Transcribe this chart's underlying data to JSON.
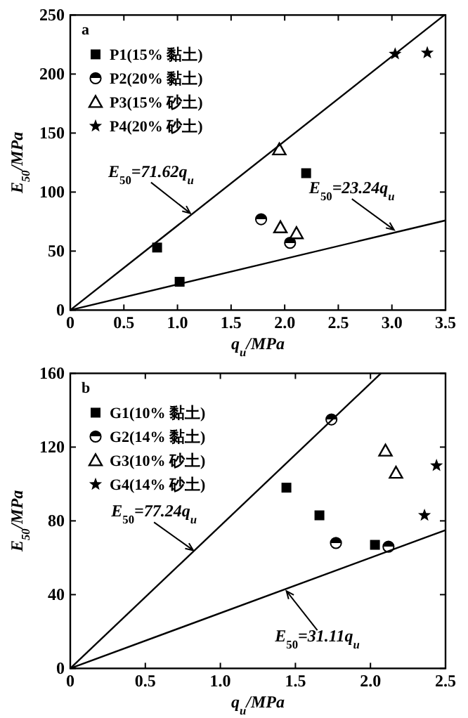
{
  "chart_data": [
    {
      "type": "scatter",
      "xlabel": "q$_{u}$/MPa",
      "ylabel": "E$_{50}$/MPa",
      "xlim": [
        0,
        3.5
      ],
      "ylim": [
        0,
        250
      ],
      "xticks": [
        0,
        {
          "value": 0.5,
          "label": "0.5"
        },
        {
          "value": 1,
          "label": "1.0"
        },
        {
          "value": 1.5,
          "label": "1.5"
        },
        {
          "value": 2,
          "label": "2.0"
        },
        {
          "value": 2.5,
          "label": "2.5"
        },
        {
          "value": 3,
          "label": "3.0"
        },
        {
          "value": 3.5,
          "label": "3.5"
        }
      ],
      "yticks": [
        0,
        50,
        100,
        150,
        200,
        250
      ],
      "legend": "top left",
      "grid": false,
      "series": [
        {
          "name": "P1(15% 黏土)",
          "color": "#000000",
          "marker": "square",
          "x": [
            0.81,
            1.02,
            2.2
          ],
          "values": [
            53,
            24,
            116
          ]
        },
        {
          "name": "P2(20% 黏土)",
          "color": "#000000",
          "marker": "circle",
          "x": [
            1.78,
            2.05
          ],
          "values": [
            77,
            57
          ]
        },
        {
          "name": "P3(15% 砂土)",
          "color": "#000000",
          "marker": "triangle",
          "x": [
            1.95,
            1.96,
            2.11
          ],
          "values": [
            136,
            70,
            65
          ]
        },
        {
          "name": "P4(20% 砂土)",
          "color": "#000000",
          "marker": "star",
          "x": [
            3.03,
            3.33
          ],
          "values": [
            217,
            218
          ]
        },
        {
          "type": "line",
          "color": "#000000",
          "x": [
            0,
            3.49
          ],
          "values": [
            0,
            250
          ]
        },
        {
          "type": "line",
          "color": "#000000",
          "x": [
            0,
            3.5
          ],
          "values": [
            0,
            76
          ]
        }
      ],
      "annotations": [
        "a",
        {
          "text": "E$_{50}$=71.62q$_{u}$",
          "x": 1.12,
          "y": 82
        },
        {
          "text": "E$_{50}$=23.24q$_{u}$",
          "x": 3.02,
          "y": 68
        }
      ]
    },
    {
      "type": "scatter",
      "xlabel": "q$_{u}$/MPa",
      "ylabel": "E$_{50}$/MPa",
      "xlim": [
        0,
        2.5
      ],
      "ylim": [
        0,
        160
      ],
      "xticks": [
        0,
        {
          "value": 0.5,
          "label": "0.5"
        },
        {
          "value": 1,
          "label": "1.0"
        },
        {
          "value": 1.5,
          "label": "1.5"
        },
        {
          "value": 2,
          "label": "2.0"
        },
        {
          "value": 2.5,
          "label": "2.5"
        }
      ],
      "yticks": [
        0,
        40,
        80,
        120,
        160
      ],
      "legend": "top left",
      "grid": false,
      "series": [
        {
          "name": "G1(10% 黏土)",
          "color": "#000000",
          "marker": "square",
          "x": [
            1.44,
            1.66,
            2.03
          ],
          "values": [
            98,
            83,
            67
          ]
        },
        {
          "name": "G2(14% 黏土)",
          "color": "#000000",
          "marker": "circle",
          "x": [
            1.74,
            1.77,
            2.12
          ],
          "values": [
            135,
            68,
            66
          ]
        },
        {
          "name": "G3(10% 砂土)",
          "color": "#000000",
          "marker": "triangle",
          "x": [
            2.1,
            2.17
          ],
          "values": [
            118,
            106
          ]
        },
        {
          "name": "G4(14% 砂土)",
          "color": "#000000",
          "marker": "star",
          "x": [
            2.44,
            2.36
          ],
          "values": [
            110,
            83
          ]
        },
        {
          "type": "line",
          "color": "#000000",
          "x": [
            0,
            2.07
          ],
          "values": [
            0,
            160
          ]
        },
        {
          "type": "line",
          "color": "#000000",
          "x": [
            0,
            2.5
          ],
          "values": [
            0,
            75
          ]
        }
      ],
      "annotations": [
        "b",
        {
          "text": "E$_{50}$=77.24q$_{u}$",
          "x": 0.82,
          "y": 64
        },
        {
          "text": "E$_{50}$=31.11q$_{u}$",
          "x": 1.44,
          "y": 42
        }
      ]
    }
  ]
}
